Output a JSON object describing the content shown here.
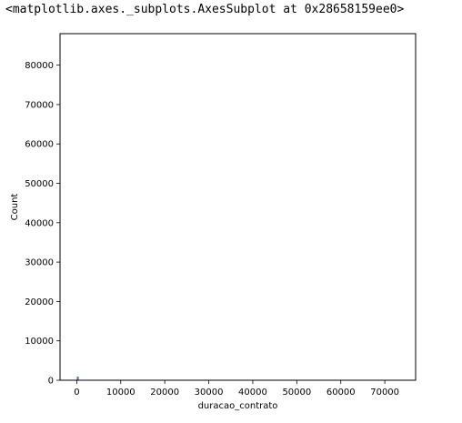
{
  "output_text": "<matplotlib.axes._subplots.AxesSubplot at 0x28658159ee0>",
  "chart_data": {
    "type": "bar",
    "xlabel": "duracao_contrato",
    "ylabel": "Count",
    "xlim": [
      -3800,
      77000
    ],
    "ylim": [
      0,
      88000
    ],
    "x_ticks": [
      0,
      10000,
      20000,
      30000,
      40000,
      50000,
      60000,
      70000
    ],
    "y_ticks": [
      0,
      10000,
      20000,
      30000,
      40000,
      50000,
      60000,
      70000,
      80000
    ],
    "bins": [
      {
        "x0": 0,
        "x1": 450,
        "count": 900
      }
    ],
    "bar_color": "#4c72b0",
    "grid": false,
    "legend": "none"
  }
}
